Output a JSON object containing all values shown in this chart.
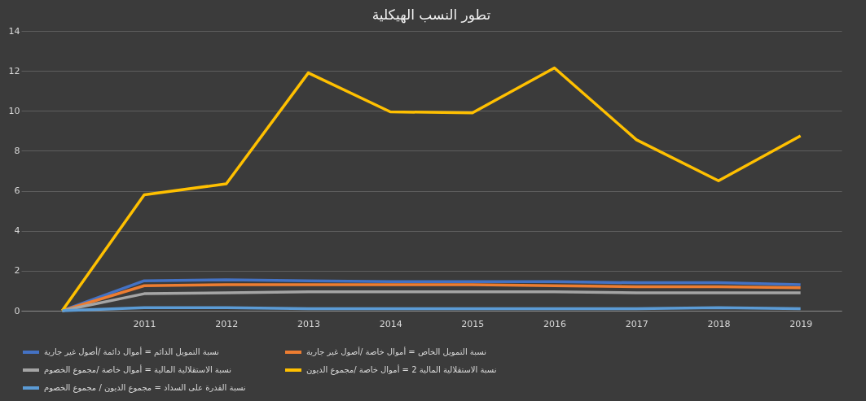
{
  "chart_data": {
    "type": "line",
    "title": "تطور النسب الهيكلية",
    "categories": [
      null,
      "2011",
      "2012",
      "2013",
      "2014",
      "2015",
      "2016",
      "2017",
      "2018",
      "2019"
    ],
    "series": [
      {
        "name": "نسبة التمويل الدائم = أموال دائمة /أصول غير جارية",
        "color": "#4472c4",
        "values": [
          0,
          1.5,
          1.55,
          1.5,
          1.45,
          1.45,
          1.45,
          1.4,
          1.4,
          1.3
        ]
      },
      {
        "name": "نسبة التمويل الخاص = أموال خاصة /أصول غير جارية",
        "color": "#ed7d31",
        "values": [
          0,
          1.25,
          1.3,
          1.3,
          1.3,
          1.3,
          1.25,
          1.2,
          1.2,
          1.15
        ]
      },
      {
        "name": "نسبة الاستقلالية المالية  = أموال خاصة /مجموع الخصوم",
        "color": "#a5a5a5",
        "values": [
          0,
          0.85,
          0.9,
          0.95,
          0.95,
          0.95,
          0.95,
          0.9,
          0.9,
          0.9
        ]
      },
      {
        "name": "نسبة الاستقلالية المالية 2 = أموال خاصة /مجموع الديون",
        "color": "#ffc000",
        "values": [
          0,
          5.8,
          6.35,
          11.9,
          9.95,
          9.9,
          12.15,
          8.55,
          6.5,
          8.75
        ]
      },
      {
        "name": "نسبة القدرة على السداد = مجموع الديون / مجموع الخصوم",
        "color": "#5b9bd5",
        "values": [
          0,
          0.15,
          0.15,
          0.1,
          0.1,
          0.1,
          0.1,
          0.1,
          0.15,
          0.1
        ]
      }
    ],
    "ylim": [
      0,
      14
    ],
    "yticks": [
      0,
      2,
      4,
      6,
      8,
      10,
      12,
      14
    ],
    "grid": "y",
    "legend": "bottom",
    "marker": "none",
    "line_style": "solid"
  }
}
